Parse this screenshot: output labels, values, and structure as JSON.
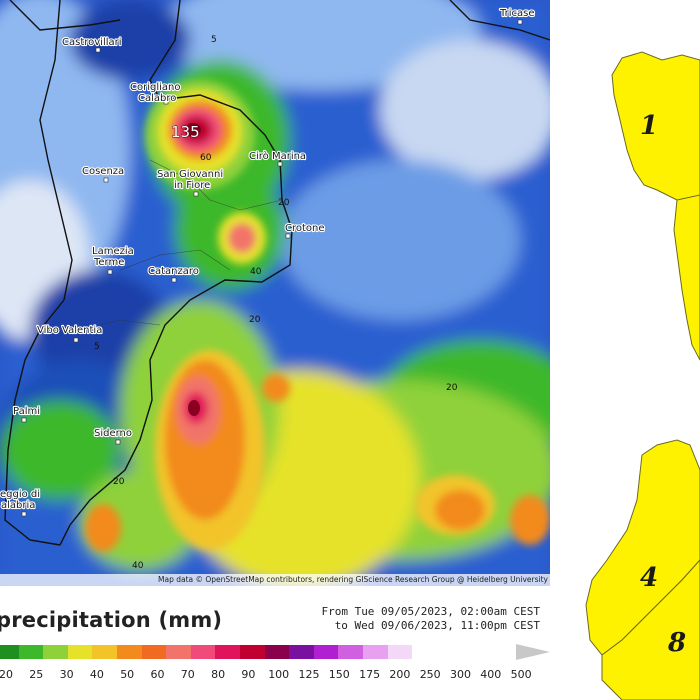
{
  "map": {
    "cities": [
      {
        "name": "Castrovillari",
        "key": "castrovillari"
      },
      {
        "name": "Corigliano\nCalabro",
        "key": "corigliano"
      },
      {
        "name": "Cosenza",
        "key": "cosenza"
      },
      {
        "name": "San Giovanni\nin Fiore",
        "key": "sangiovanni"
      },
      {
        "name": "Cirò Marina",
        "key": "ciro"
      },
      {
        "name": "Crotone",
        "key": "crotone"
      },
      {
        "name": "Lamezia\nTerme",
        "key": "lamezia"
      },
      {
        "name": "Catanzaro",
        "key": "catanzaro"
      },
      {
        "name": "Vibo Valentia",
        "key": "vibo"
      },
      {
        "name": "Palmi",
        "key": "palmi"
      },
      {
        "name": "Siderno",
        "key": "siderno"
      },
      {
        "name": "eggio di\nalabria",
        "key": "reggio"
      },
      {
        "name": "Tricase",
        "key": "tricase"
      }
    ],
    "peak_value": "135",
    "contour_labels": [
      "5",
      "60",
      "20",
      "40",
      "20",
      "5",
      "20",
      "20",
      "40"
    ],
    "attribution": "Map data © OpenStreetMap contributors, rendering GIScience Research Group @ Heidelberg University"
  },
  "legend": {
    "title": "precipitation (mm)",
    "period_line1": "From Tue 09/05/2023, 02:00am CEST",
    "period_line2": "to Wed 09/06/2023, 11:00pm CEST",
    "ticks": [
      "20",
      "25",
      "30",
      "40",
      "50",
      "60",
      "70",
      "80",
      "90",
      "100",
      "125",
      "150",
      "175",
      "200",
      "250",
      "300",
      "400",
      "500"
    ],
    "colors": [
      "#1f8f1f",
      "#3cb82a",
      "#8fd13a",
      "#e6e22a",
      "#f2c42a",
      "#f28a1e",
      "#f06a22",
      "#f2736a",
      "#f04a7a",
      "#e0145a",
      "#c00030",
      "#8a004a",
      "#7a10a0",
      "#b020d0",
      "#d060e0",
      "#e8a0f0",
      "#f4d8f8",
      "#c8c8c8"
    ]
  },
  "zones": {
    "labels": [
      "1",
      "4",
      "8"
    ],
    "fill_color": "#fff200"
  }
}
